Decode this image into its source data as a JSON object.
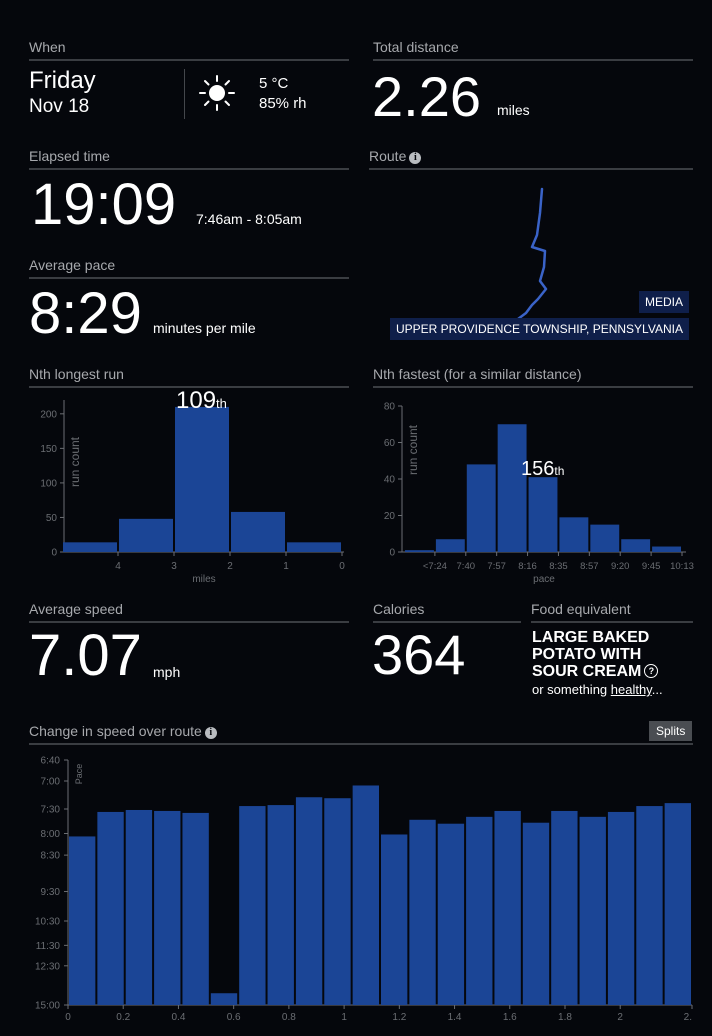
{
  "when": {
    "title": "When",
    "day": "Friday",
    "date": "Nov 18",
    "temp": "5 °C",
    "humidity": "85% rh",
    "weather_icon": "sun-icon"
  },
  "distance": {
    "title": "Total distance",
    "value": "2.26",
    "unit": "miles"
  },
  "elapsed": {
    "title": "Elapsed time",
    "value": "19:09",
    "range": "7:46am - 8:05am"
  },
  "route": {
    "title": "Route",
    "label_top": "MEDIA",
    "label_bottom": "UPPER PROVIDENCE TOWNSHIP, PENNSYLVANIA",
    "line_color": "#3a63c8"
  },
  "pace": {
    "title": "Average pace",
    "value": "8:29",
    "unit": "minutes per mile"
  },
  "nth_longest": {
    "title": "Nth longest run",
    "rank": "109",
    "suffix": "th"
  },
  "nth_fastest": {
    "title": "Nth fastest (for a similar distance)",
    "rank": "156",
    "suffix": "th"
  },
  "speed": {
    "title": "Average speed",
    "value": "7.07",
    "unit": "mph"
  },
  "calories": {
    "title": "Calories",
    "value": "364"
  },
  "food": {
    "title": "Food equivalent",
    "item": "LARGE BAKED POTATO WITH SOUR CREAM",
    "help_icon": "?",
    "sub_prefix": "or something ",
    "sub_link": "healthy",
    "sub_suffix": "..."
  },
  "speed_change": {
    "title": "Change in speed over route",
    "splits_label": "Splits"
  },
  "colors": {
    "bar": "#1b4596",
    "bg": "#05070c",
    "axis": "#6b6e73"
  },
  "chart_data": [
    {
      "type": "bar",
      "title": "Nth longest run",
      "xlabel": "miles",
      "ylabel": "run count",
      "x_ticks": [
        "4",
        "3",
        "2",
        "1",
        "0"
      ],
      "y_ticks": [
        "0",
        "50",
        "100",
        "150",
        "200"
      ],
      "ylim": [
        0,
        220
      ],
      "bins": [
        [
          5,
          4
        ],
        [
          4,
          3
        ],
        [
          3,
          2
        ],
        [
          2,
          1
        ],
        [
          1,
          0
        ]
      ],
      "values": [
        14,
        48,
        210,
        58,
        14
      ],
      "highlight_index": 2
    },
    {
      "type": "bar",
      "title": "Nth fastest (for a similar distance)",
      "xlabel": "pace",
      "ylabel": "run count",
      "x_ticks": [
        "<7:24",
        "7:40",
        "7:57",
        "8:16",
        "8:35",
        "8:57",
        "9:20",
        "9:45",
        "10:13"
      ],
      "y_ticks": [
        "0",
        "20",
        "40",
        "60",
        "80"
      ],
      "ylim": [
        0,
        80
      ],
      "values": [
        1,
        7,
        48,
        70,
        41,
        19,
        15,
        7,
        3
      ],
      "highlight_index": 4
    },
    {
      "type": "bar",
      "title": "Change in speed over route",
      "xlabel": "",
      "ylabel": "Pace",
      "x_ticks": [
        "0",
        "0.2",
        "0.4",
        "0.6",
        "0.8",
        "1",
        "1.2",
        "1.4",
        "1.6",
        "1.8",
        "2",
        "2."
      ],
      "y_ticks": [
        "6:40",
        "7:00",
        "7:30",
        "8:00",
        "8:30",
        "9:30",
        "10:30",
        "11:30",
        "12:30",
        "15:00"
      ],
      "xlim": [
        0,
        2.26
      ],
      "speed_mph_ylim": [
        4,
        9
      ],
      "values_mph": [
        7.44,
        7.94,
        7.98,
        7.96,
        7.92,
        4.24,
        8.06,
        8.08,
        8.24,
        8.22,
        8.48,
        7.48,
        7.78,
        7.7,
        7.84,
        7.96,
        7.72,
        7.96,
        7.84,
        7.94,
        8.06,
        8.12
      ]
    }
  ]
}
